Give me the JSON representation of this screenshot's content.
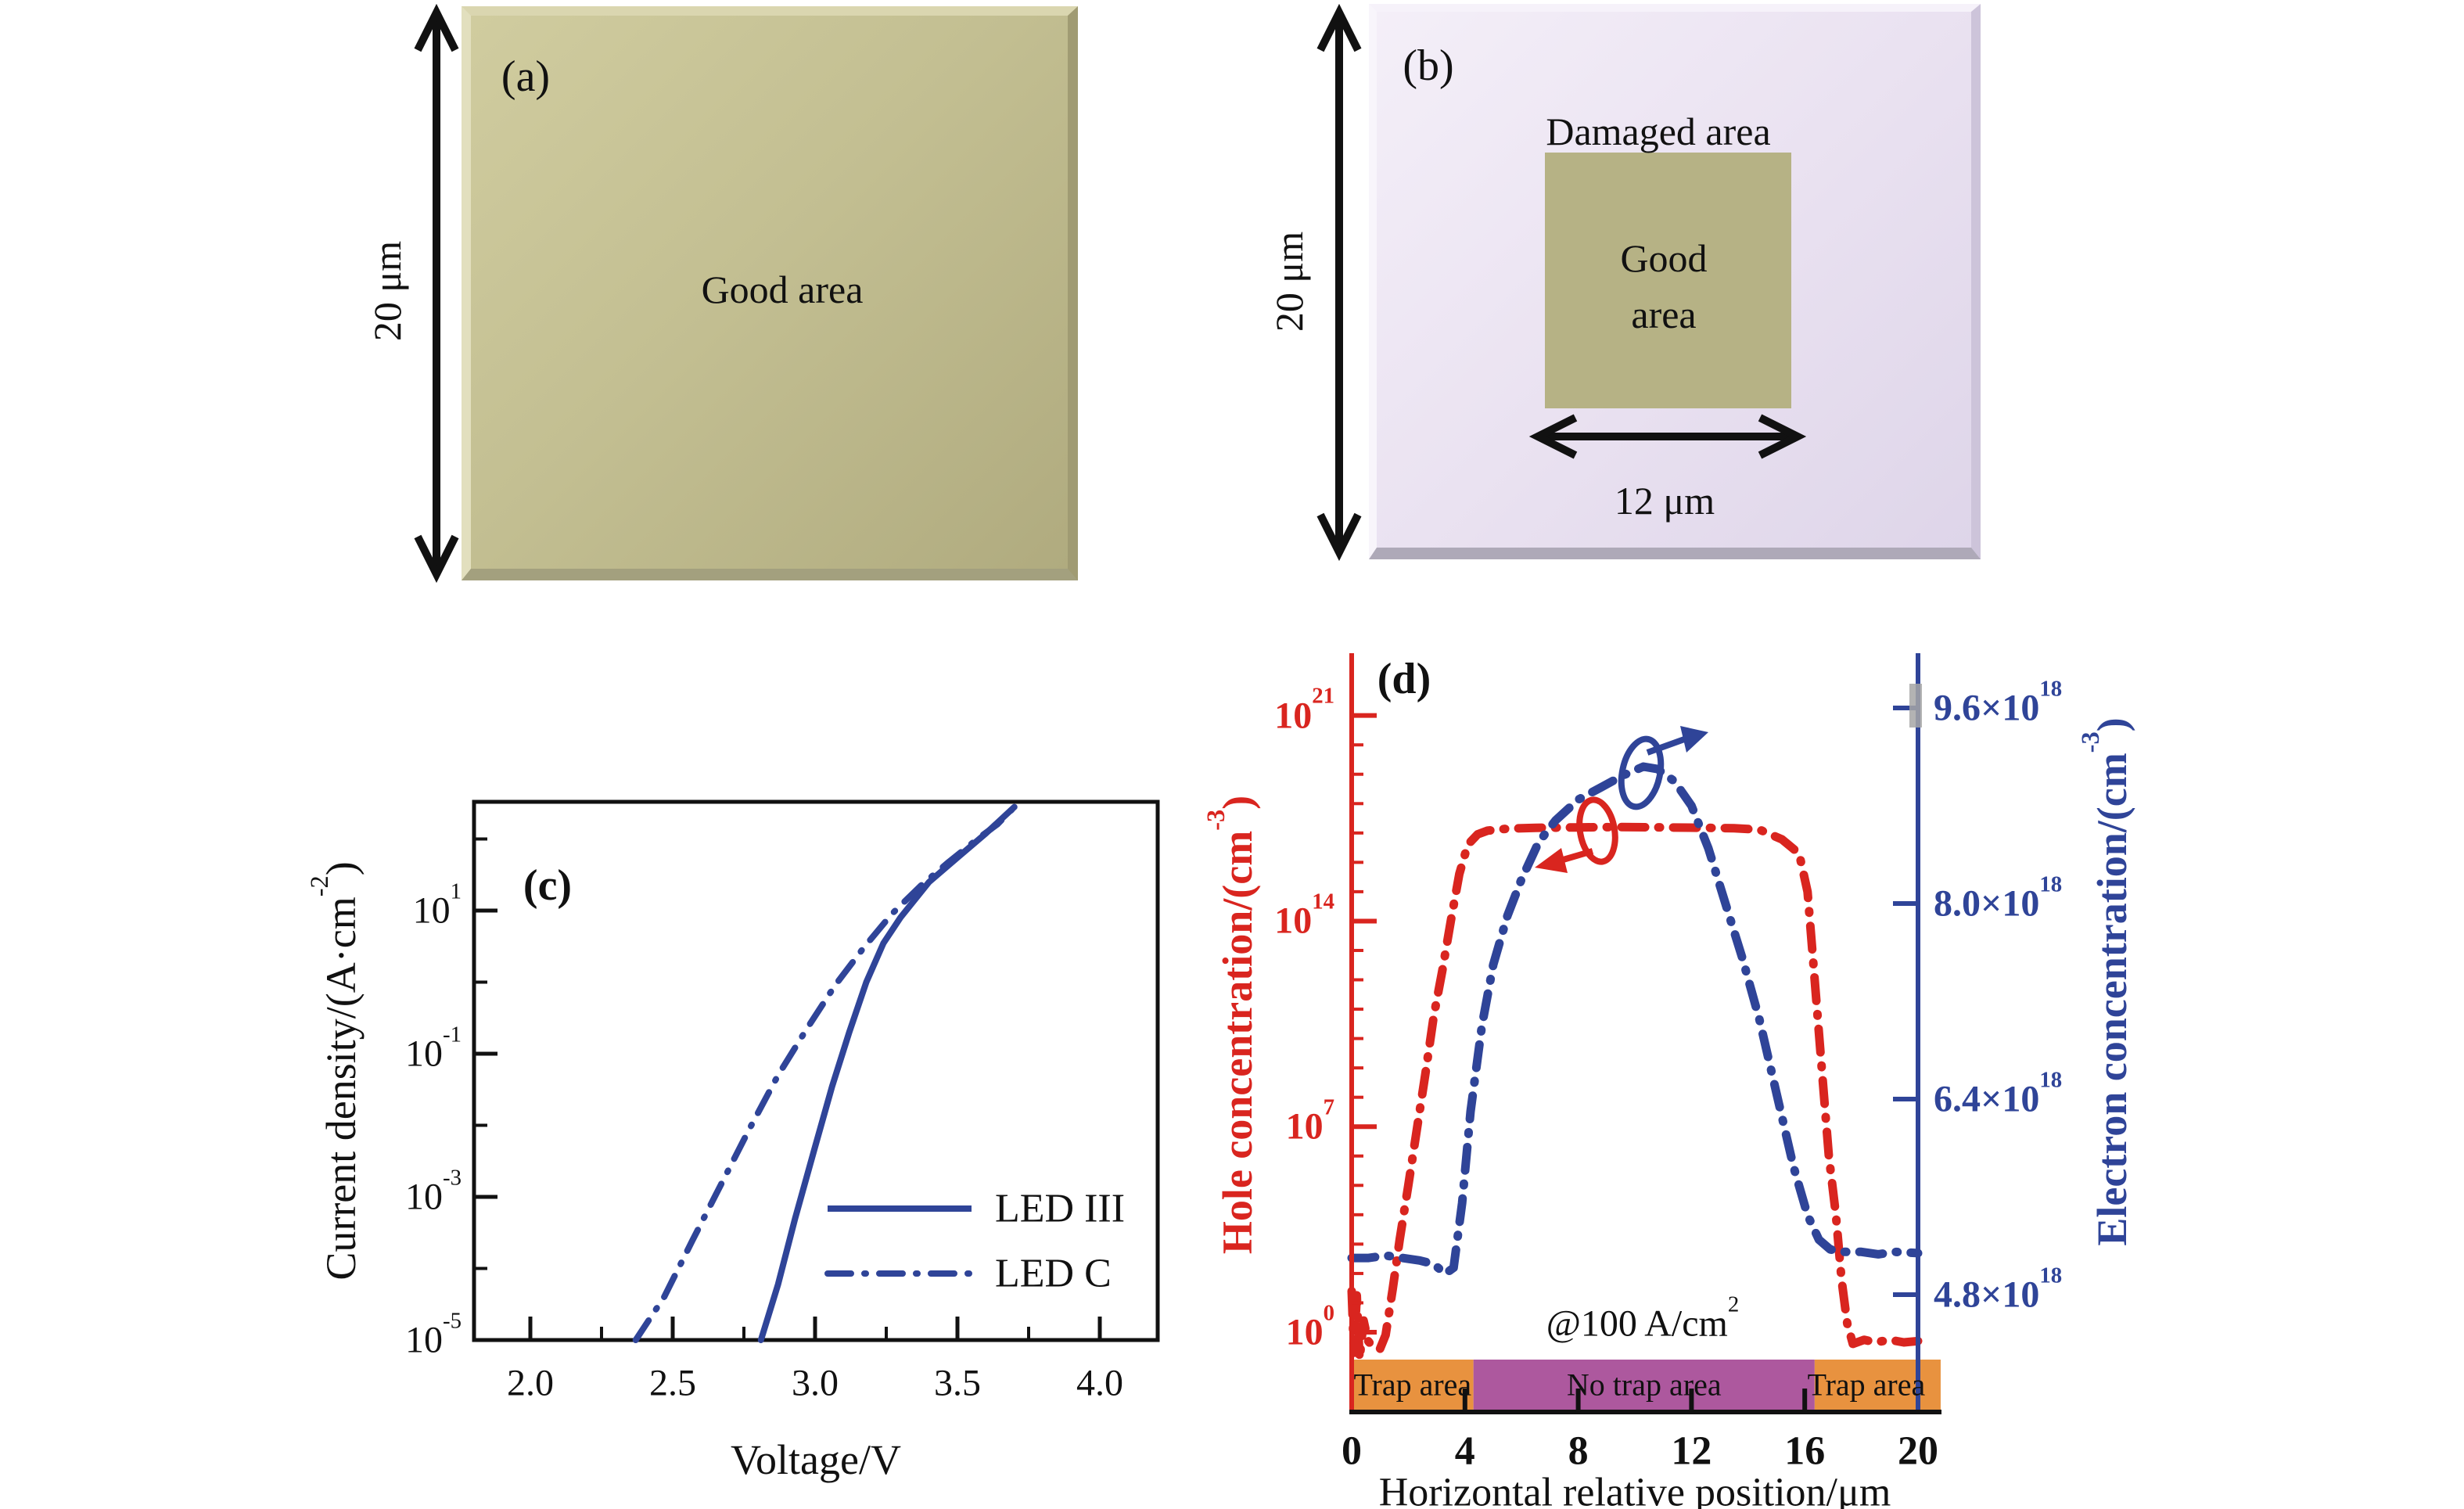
{
  "figure": {
    "panels": {
      "a": {
        "label": "(a)",
        "area_label": "Good area",
        "dimension_label": "20 μm",
        "fill_color": "#c3bf92"
      },
      "b": {
        "label": "(b)",
        "damaged_label": "Damaged area",
        "good_label_line1": "Good",
        "good_label_line2": "area",
        "width_label": "12 μm",
        "height_label": "20 μm",
        "outer_color": "#eae2f1",
        "inner_color": "#b6b285"
      }
    },
    "colors": {
      "curve_blue": "#2f4498",
      "curve_red": "#d9251f",
      "trap_orange": "#e8923f",
      "no_trap_purple": "#ad589e",
      "axis_black": "#111111",
      "artifact_gray": "#a6a6a6"
    }
  },
  "chart_data": [
    {
      "id": "c",
      "type": "line",
      "panel_label": "(c)",
      "xlabel": "Voltage/V",
      "ylabel": "Current density/(A·cm^-2)",
      "yscale": "log",
      "xlim": [
        1.8,
        4.22
      ],
      "ylim": [
        1e-05,
        330
      ],
      "grid": false,
      "x_ticks": {
        "values": [
          2.0,
          2.5,
          3.0,
          3.5,
          4.0
        ],
        "labels": [
          "2.0",
          "2.5",
          "3.0",
          "3.5",
          "4.0"
        ],
        "minor": [
          2.25,
          2.75,
          3.25,
          3.75
        ]
      },
      "y_ticks": {
        "values": [
          10,
          0.1,
          0.001,
          1e-05
        ],
        "labels": [
          "10^1",
          "10^-1",
          "10^-3",
          "10^-5"
        ],
        "minor": [
          100,
          1,
          0.01,
          0.0001
        ]
      },
      "line_color": "#2f4498",
      "series": [
        {
          "name": "LED III",
          "style": "solid",
          "points": [
            [
              2.81,
              1e-05
            ],
            [
              2.87,
              6e-05
            ],
            [
              2.93,
              0.0005
            ],
            [
              3.0,
              0.005
            ],
            [
              3.06,
              0.035
            ],
            [
              3.12,
              0.2
            ],
            [
              3.18,
              1.0
            ],
            [
              3.24,
              3.5
            ],
            [
              3.3,
              8
            ],
            [
              3.4,
              25
            ],
            [
              3.5,
              55
            ],
            [
              3.6,
              120
            ],
            [
              3.7,
              280
            ]
          ]
        },
        {
          "name": "LED C",
          "style": "dashdot",
          "points": [
            [
              2.37,
              1e-05
            ],
            [
              2.47,
              4e-05
            ],
            [
              2.57,
              0.00025
            ],
            [
              2.67,
              0.0015
            ],
            [
              2.77,
              0.009
            ],
            [
              2.87,
              0.05
            ],
            [
              2.97,
              0.22
            ],
            [
              3.07,
              0.9
            ],
            [
              3.17,
              3
            ],
            [
              3.27,
              9
            ],
            [
              3.37,
              22
            ],
            [
              3.47,
              48
            ],
            [
              3.57,
              100
            ],
            [
              3.64,
              160
            ],
            [
              3.7,
              280
            ]
          ]
        }
      ],
      "legend": {
        "position": "lower right",
        "entries": [
          "LED III",
          "LED C"
        ]
      }
    },
    {
      "id": "d",
      "type": "line",
      "panel_label": "(d)",
      "xlabel": "Horizontal relative position/μm",
      "ylabel_left": "Hole concentration/(cm^-3)",
      "ylabel_right": "Electron concentration/(cm^-3)",
      "annotation": "@100 A/cm^2",
      "xlim": [
        0,
        20
      ],
      "ylim_left_log": [
        0.002,
        1.3e+23
      ],
      "ylim_right": [
        3.84e+18,
        1.005e+19
      ],
      "x_ticks": {
        "values": [
          0,
          4,
          8,
          12,
          16,
          20
        ],
        "labels": [
          "0",
          "4",
          "8",
          "12",
          "16",
          "20"
        ]
      },
      "left_ticks": {
        "values": [
          1e+21,
          100000000000000.0,
          10000000.0,
          1
        ],
        "labels": [
          "10^21",
          "10^14",
          "10^7",
          "10^0"
        ]
      },
      "right_ticks": {
        "values": [
          9.6e+18,
          8e+18,
          6.4e+18,
          4.8e+18
        ],
        "labels": [
          "9.6×10^18",
          "8.0×10^18",
          "6.4×10^18",
          "4.8×10^18"
        ]
      },
      "hole_color": "#d9251f",
      "electron_color": "#2f4498",
      "series": [
        {
          "name": "Hole concentration",
          "axis": "left",
          "style": "dashdot",
          "color": "#d9251f",
          "points": [
            [
              0,
              25
            ],
            [
              0.08,
              0.2
            ],
            [
              0.18,
              18
            ],
            [
              0.28,
              0.12
            ],
            [
              0.42,
              2.5
            ],
            [
              0.58,
              0.5
            ],
            [
              0.78,
              0.3
            ],
            [
              1.0,
              0.27
            ],
            [
              1.2,
              0.8
            ],
            [
              1.45,
              30
            ],
            [
              1.7,
              1500
            ],
            [
              2.0,
              100000.0
            ],
            [
              2.3,
              8000000.0
            ],
            [
              2.6,
              600000000.0
            ],
            [
              2.9,
              60000000000.0
            ],
            [
              3.2,
              2000000000000.0
            ],
            [
              3.5,
              100000000000000.0
            ],
            [
              3.8,
              4000000000000000.0
            ],
            [
              4.1,
              4e+16
            ],
            [
              4.45,
              9e+16
            ],
            [
              4.8,
              1.2e+17
            ],
            [
              5.5,
              1.4e+17
            ],
            [
              6.5,
              1.5e+17
            ],
            [
              8,
              1.55e+17
            ],
            [
              9.5,
              1.6e+17
            ],
            [
              11,
              1.55e+17
            ],
            [
              12.5,
              1.5e+17
            ],
            [
              13.5,
              1.45e+17
            ],
            [
              14.4,
              1.3e+17
            ],
            [
              15.2,
              6e+16
            ],
            [
              15.8,
              2e+16
            ],
            [
              16.1,
              1000000000000000.0
            ],
            [
              16.35,
              1000000000000.0
            ],
            [
              16.6,
              1000000000.0
            ],
            [
              16.85,
              1000000.0
            ],
            [
              17.1,
              10000.0
            ],
            [
              17.3,
              60
            ],
            [
              17.5,
              2
            ],
            [
              17.7,
              0.4
            ],
            [
              18.1,
              0.55
            ],
            [
              18.5,
              0.45
            ],
            [
              19,
              0.55
            ],
            [
              19.5,
              0.45
            ],
            [
              20,
              0.5
            ]
          ]
        },
        {
          "name": "Electron concentration",
          "axis": "right",
          "style": "dashdot",
          "color": "#2f4498",
          "unit": "1e18 cm^-3",
          "points": [
            [
              0,
              5.1
            ],
            [
              0.6,
              5.1
            ],
            [
              1.2,
              5.12
            ],
            [
              1.8,
              5.1
            ],
            [
              2.4,
              5.08
            ],
            [
              2.9,
              5.05
            ],
            [
              3.3,
              4.97
            ],
            [
              3.6,
              5.02
            ],
            [
              3.9,
              5.55
            ],
            [
              4.2,
              6.3
            ],
            [
              4.6,
              7.0
            ],
            [
              5.0,
              7.5
            ],
            [
              5.5,
              7.9
            ],
            [
              6.0,
              8.2
            ],
            [
              6.6,
              8.5
            ],
            [
              7.2,
              8.68
            ],
            [
              8.0,
              8.85
            ],
            [
              8.8,
              8.95
            ],
            [
              9.6,
              9.05
            ],
            [
              10.3,
              9.12
            ],
            [
              10.8,
              9.1
            ],
            [
              11.4,
              9.0
            ],
            [
              12.0,
              8.8
            ],
            [
              12.6,
              8.45
            ],
            [
              13.2,
              8.0
            ],
            [
              13.8,
              7.55
            ],
            [
              14.4,
              7.05
            ],
            [
              15.0,
              6.45
            ],
            [
              15.6,
              5.85
            ],
            [
              16.1,
              5.45
            ],
            [
              16.5,
              5.25
            ],
            [
              16.9,
              5.17
            ],
            [
              17.4,
              5.15
            ],
            [
              18.0,
              5.15
            ],
            [
              18.6,
              5.13
            ],
            [
              19.2,
              5.15
            ],
            [
              20,
              5.14
            ]
          ]
        }
      ],
      "region_bars": [
        {
          "label": "Trap area",
          "color": "#e8923f",
          "x_range": [
            0,
            4.3
          ]
        },
        {
          "label": "No trap area",
          "color": "#ad589e",
          "x_range": [
            4.3,
            16.35
          ]
        },
        {
          "label": "Trap area",
          "color": "#e8923f",
          "x_range": [
            16.35,
            20.8
          ]
        }
      ]
    }
  ]
}
